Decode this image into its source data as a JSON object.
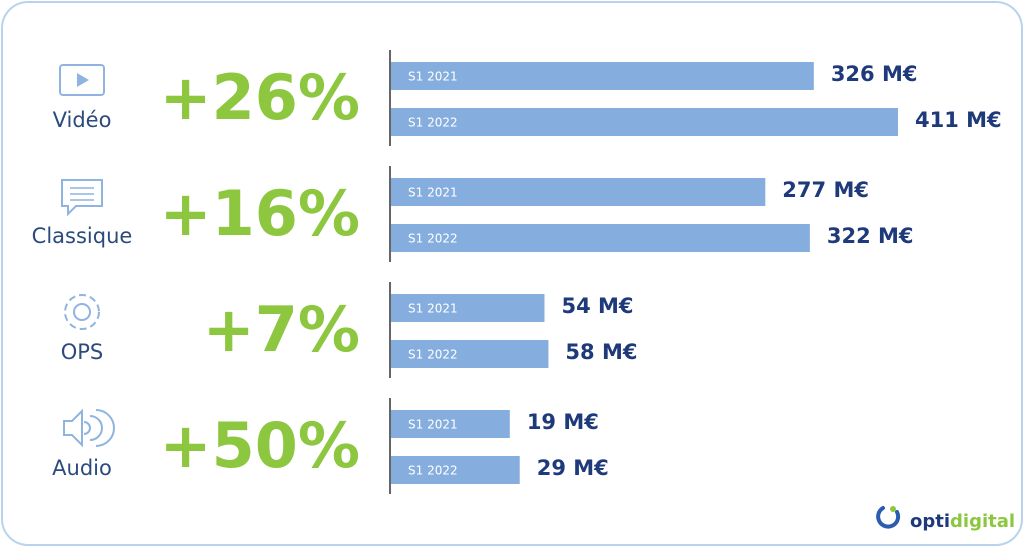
{
  "chart_data": {
    "type": "bar",
    "categories": [
      "Vidéo",
      "Classique",
      "OPS",
      "Audio"
    ],
    "growth_labels": [
      "+26%",
      "+16%",
      "+7%",
      "+50%"
    ],
    "series": [
      {
        "name": "S1 2021",
        "color": "#85aedf",
        "values": [
          326,
          277,
          54,
          19
        ],
        "value_labels": [
          "326 M€",
          "277 M€",
          "54 M€",
          "19 M€"
        ]
      },
      {
        "name": "S1 2022",
        "color": "#85aedf",
        "values": [
          411,
          322,
          58,
          29
        ],
        "value_labels": [
          "411 M€",
          "322 M€",
          "58 M€",
          "29 M€"
        ]
      }
    ],
    "brand": [
      "opti",
      "digital"
    ]
  }
}
